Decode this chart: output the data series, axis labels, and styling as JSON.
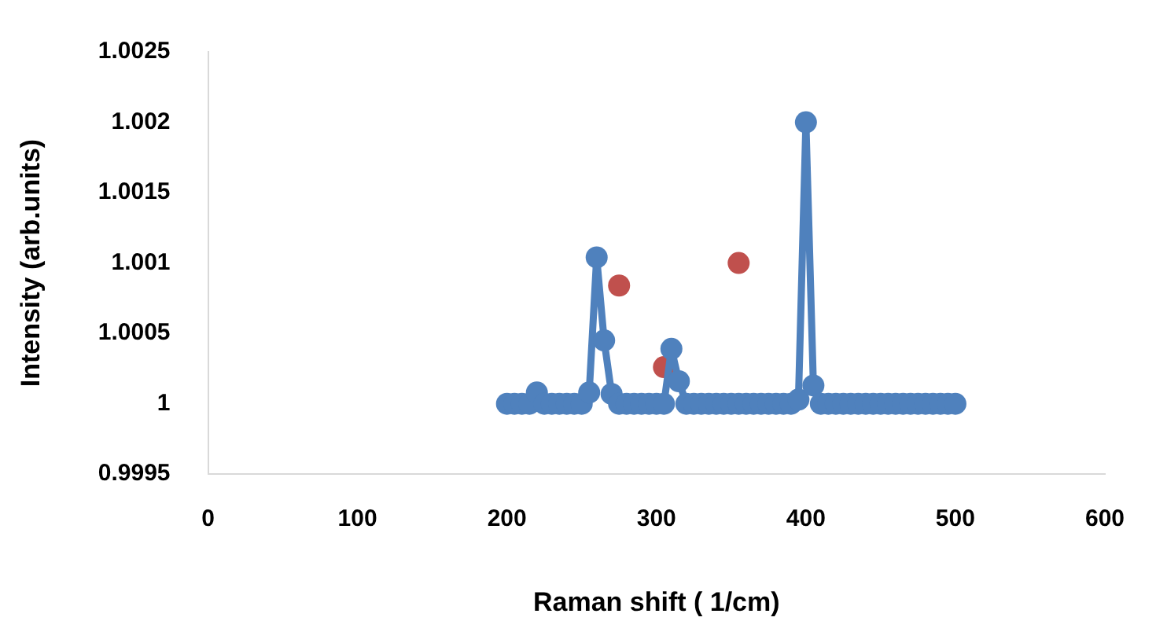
{
  "chart_data": {
    "type": "line",
    "xlabel": "Raman shift ( 1/cm)",
    "ylabel": "Intensity (arb.units)",
    "xlim": [
      0,
      600
    ],
    "xticks": [
      0,
      100,
      200,
      300,
      400,
      500,
      600
    ],
    "ylim": [
      0.9995,
      1.0025
    ],
    "yticks": [
      0.9995,
      1,
      1.0005,
      1.001,
      1.0015,
      1.002,
      1.0025
    ],
    "grid": false,
    "legend": false,
    "marker": "circle",
    "series": [
      {
        "color": "#4f81bd",
        "x": [
          200,
          205,
          210,
          215,
          220,
          225,
          230,
          235,
          240,
          245,
          250,
          255,
          260,
          265,
          270,
          275,
          280,
          285,
          290,
          295,
          300,
          305,
          310,
          315,
          320,
          325,
          330,
          335,
          340,
          345,
          350,
          355,
          360,
          365,
          370,
          375,
          380,
          385,
          390,
          395,
          400,
          405,
          410,
          415,
          420,
          425,
          430,
          435,
          440,
          445,
          450,
          455,
          460,
          465,
          470,
          475,
          480,
          485,
          490,
          495,
          500
        ],
        "values": [
          1,
          1,
          1,
          1,
          1.00008,
          1,
          1,
          1,
          1,
          1,
          1,
          1.00008,
          1.00104,
          1.00045,
          1.00007,
          1,
          1,
          1,
          1,
          1,
          1,
          1,
          1.00039,
          1.00016,
          1,
          1,
          1,
          1,
          1,
          1,
          1,
          1,
          1,
          1,
          1,
          1,
          1,
          1,
          1,
          1.00003,
          1.002,
          1.00013,
          1,
          1,
          1,
          1,
          1,
          1,
          1,
          1,
          1,
          1,
          1,
          1,
          1,
          1,
          1,
          1,
          1,
          1,
          1
        ]
      },
      {
        "type": "scatter",
        "color": "#c0504d",
        "x": [
          275,
          305,
          355
        ],
        "values": [
          1.00084,
          1.00026,
          1.001
        ]
      }
    ]
  }
}
